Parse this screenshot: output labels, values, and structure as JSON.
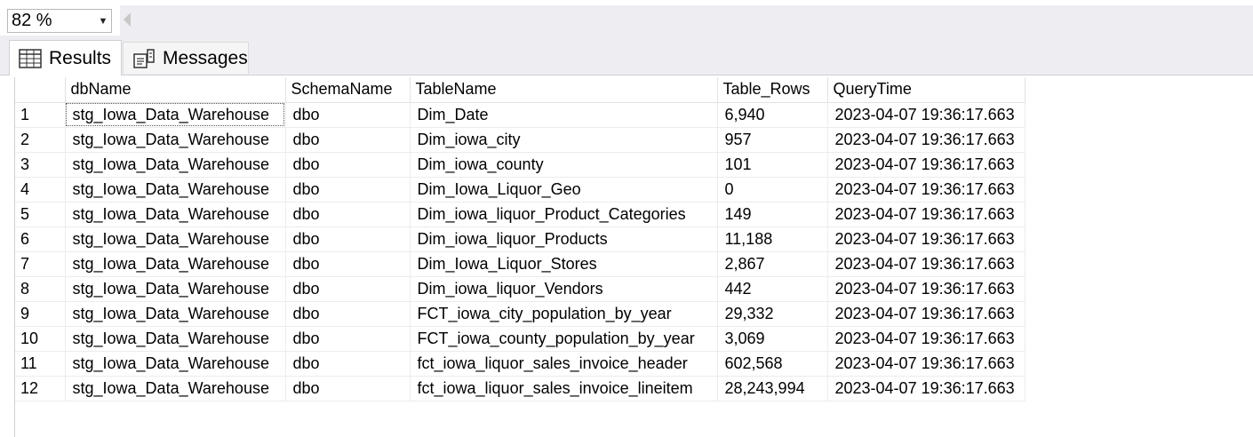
{
  "zoom": {
    "value": "82 %"
  },
  "tabs": {
    "results": "Results",
    "messages": "Messages"
  },
  "columns": [
    "",
    "dbName",
    "SchemaName",
    "TableName",
    "Table_Rows",
    "QueryTime"
  ],
  "rows": [
    [
      "1",
      "stg_Iowa_Data_Warehouse",
      "dbo",
      "Dim_Date",
      "6,940",
      "2023-04-07 19:36:17.663"
    ],
    [
      "2",
      "stg_Iowa_Data_Warehouse",
      "dbo",
      "Dim_iowa_city",
      "957",
      "2023-04-07 19:36:17.663"
    ],
    [
      "3",
      "stg_Iowa_Data_Warehouse",
      "dbo",
      "Dim_iowa_county",
      "101",
      "2023-04-07 19:36:17.663"
    ],
    [
      "4",
      "stg_Iowa_Data_Warehouse",
      "dbo",
      "Dim_Iowa_Liquor_Geo",
      "0",
      "2023-04-07 19:36:17.663"
    ],
    [
      "5",
      "stg_Iowa_Data_Warehouse",
      "dbo",
      "Dim_iowa_liquor_Product_Categories",
      "149",
      "2023-04-07 19:36:17.663"
    ],
    [
      "6",
      "stg_Iowa_Data_Warehouse",
      "dbo",
      "Dim_iowa_liquor_Products",
      "11,188",
      "2023-04-07 19:36:17.663"
    ],
    [
      "7",
      "stg_Iowa_Data_Warehouse",
      "dbo",
      "Dim_Iowa_Liquor_Stores",
      "2,867",
      "2023-04-07 19:36:17.663"
    ],
    [
      "8",
      "stg_Iowa_Data_Warehouse",
      "dbo",
      "Dim_iowa_liquor_Vendors",
      "442",
      "2023-04-07 19:36:17.663"
    ],
    [
      "9",
      "stg_Iowa_Data_Warehouse",
      "dbo",
      "FCT_iowa_city_population_by_year",
      "29,332",
      "2023-04-07 19:36:17.663"
    ],
    [
      "10",
      "stg_Iowa_Data_Warehouse",
      "dbo",
      "FCT_iowa_county_population_by_year",
      "3,069",
      "2023-04-07 19:36:17.663"
    ],
    [
      "11",
      "stg_Iowa_Data_Warehouse",
      "dbo",
      "fct_iowa_liquor_sales_invoice_header",
      "602,568",
      "2023-04-07 19:36:17.663"
    ],
    [
      "12",
      "stg_Iowa_Data_Warehouse",
      "dbo",
      "fct_iowa_liquor_sales_invoice_lineitem",
      "28,243,994",
      "2023-04-07 19:36:17.663"
    ]
  ]
}
